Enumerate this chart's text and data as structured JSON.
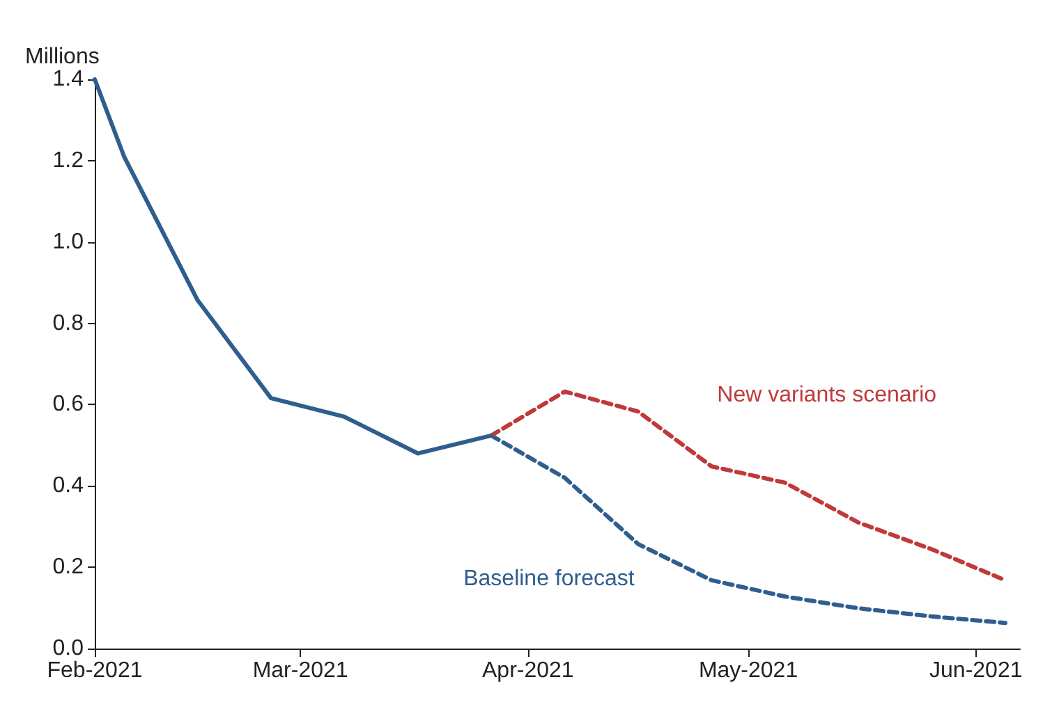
{
  "chart_data": {
    "type": "line",
    "ylabel": "Millions",
    "ylim": [
      0,
      1.4
    ],
    "yticks": [
      {
        "value": 0,
        "label": "0.0"
      },
      0.2,
      0.4,
      0.6,
      0.8,
      {
        "value": 1,
        "label": "1.0"
      },
      1.2,
      1.4
    ],
    "xlim": [
      "2021-02-01",
      "2021-06-07"
    ],
    "xticks": [
      {
        "value": "2021-02-01",
        "label": "Feb-2021"
      },
      {
        "value": "2021-03-01",
        "label": "Mar-2021"
      },
      {
        "value": "2021-04-01",
        "label": "Apr-2021"
      },
      {
        "value": "2021-05-01",
        "label": "May-2021"
      },
      {
        "value": "2021-06-01",
        "label": "Jun-2021"
      }
    ],
    "grid": false,
    "legend": false,
    "series": [
      {
        "color": "#2e5e8e",
        "line_style": "solid",
        "x": [
          "2021-02-01",
          "2021-02-05",
          "2021-02-15",
          "2021-02-25",
          "2021-03-07",
          "2021-03-17",
          "2021-03-27"
        ],
        "values": [
          1.4,
          1.21,
          0.857,
          0.616,
          0.57,
          0.48,
          0.524
        ]
      },
      {
        "name": "New variants scenario",
        "color": "#c0393b",
        "line_style": "dashed",
        "x": [
          "2021-03-27",
          "2021-04-06",
          "2021-04-16",
          "2021-04-26",
          "2021-05-06",
          "2021-05-16",
          "2021-05-26",
          "2021-06-05"
        ],
        "values": [
          0.524,
          0.632,
          0.583,
          0.448,
          0.408,
          0.31,
          0.244,
          0.168
        ]
      },
      {
        "name": "Baseline forecast",
        "color": "#2e5e8e",
        "line_style": "dashed",
        "x": [
          "2021-03-27",
          "2021-04-06",
          "2021-04-16",
          "2021-04-26",
          "2021-05-06",
          "2021-05-16",
          "2021-05-26",
          "2021-06-05"
        ],
        "values": [
          0.524,
          0.42,
          0.257,
          0.168,
          0.128,
          0.099,
          0.079,
          0.063
        ]
      }
    ]
  }
}
